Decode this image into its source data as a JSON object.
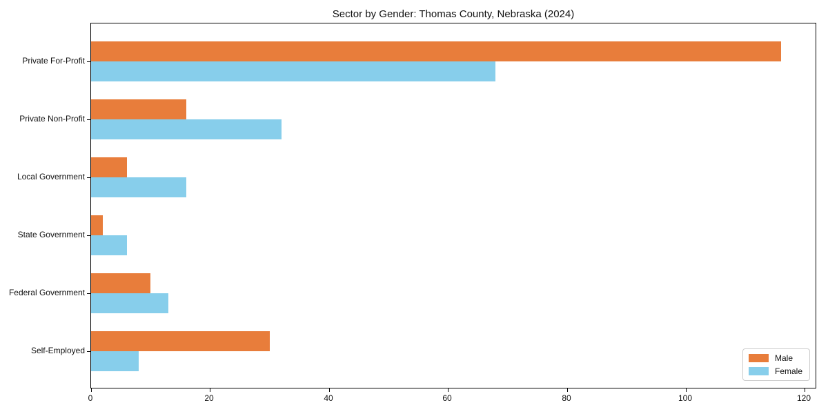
{
  "chart_data": {
    "type": "bar",
    "orientation": "horizontal",
    "title": "Sector by Gender: Thomas County, Nebraska (2024)",
    "categories": [
      "Private For-Profit",
      "Private Non-Profit",
      "Local Government",
      "State Government",
      "Federal Government",
      "Self-Employed"
    ],
    "series": [
      {
        "name": "Male",
        "color": "#E87D3B",
        "values": [
          116,
          16,
          6,
          2,
          10,
          30
        ]
      },
      {
        "name": "Female",
        "color": "#87CEEB",
        "values": [
          68,
          32,
          16,
          6,
          13,
          8
        ]
      }
    ],
    "xlabel": "",
    "ylabel": "",
    "xlim": [
      0,
      121.8
    ],
    "xticks": [
      0,
      20,
      40,
      60,
      80,
      100,
      120
    ],
    "grid": false,
    "legend": {
      "position": "lower right",
      "entries": [
        "Male",
        "Female"
      ]
    }
  }
}
